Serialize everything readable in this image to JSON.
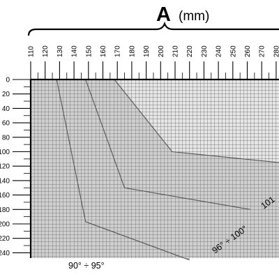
{
  "chart_data": {
    "type": "area",
    "title": {
      "letter": "A",
      "unit": "(mm)"
    },
    "xlabel": "A (mm)",
    "ylabel": "",
    "x_ticks": [
      110,
      120,
      130,
      140,
      150,
      160,
      170,
      180,
      190,
      200,
      210,
      220,
      230,
      240,
      250,
      260,
      270,
      280
    ],
    "y_ticks": [
      0,
      20,
      40,
      60,
      80,
      100,
      120,
      140,
      160,
      180,
      200,
      220,
      240
    ],
    "y_tick_labels": [
      "0",
      "20",
      "40",
      "60",
      "80",
      "100",
      "120",
      "140",
      "160",
      "180",
      "200",
      "220",
      "240"
    ],
    "xlim": [
      110,
      282
    ],
    "ylim": [
      0,
      250
    ],
    "y_inverted": true,
    "grid": true,
    "series": [
      {
        "name": "90° ÷ 95°",
        "x": [
          128,
          148,
          220
        ],
        "y": [
          0,
          197,
          250
        ],
        "color": "#b5b5b5"
      },
      {
        "name": "96° ÷ 100°",
        "x": [
          148,
          175,
          262
        ],
        "y": [
          0,
          150,
          180
        ],
        "color": "#c7c7c7"
      },
      {
        "name": "101",
        "x": [
          168,
          208,
          282
        ],
        "y": [
          0,
          100,
          115
        ],
        "color": "#cfcfcf"
      }
    ],
    "labels": [
      {
        "text": "90° ÷ 95°",
        "series": 0
      },
      {
        "text": "96° ÷ 100°",
        "series": 1
      },
      {
        "text": "101",
        "series": 2
      }
    ],
    "colors": {
      "background_region": "#e6e6e6",
      "grid": "#7d7d7d",
      "outline": "#555555",
      "axis": "#000000"
    }
  }
}
